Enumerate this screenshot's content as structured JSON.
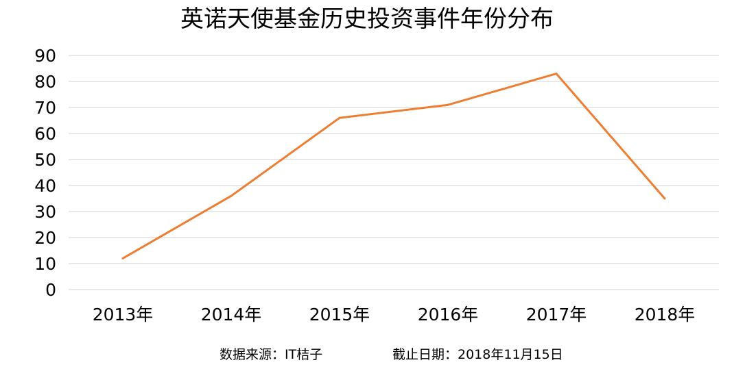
{
  "chart_data": {
    "type": "line",
    "title": "英诺天使基金历史投资事件年份分布",
    "categories": [
      "2013年",
      "2014年",
      "2015年",
      "2016年",
      "2017年",
      "2018年"
    ],
    "series": [
      {
        "values": [
          12,
          36,
          66,
          71,
          83,
          35
        ]
      }
    ],
    "ylim": [
      0,
      90
    ],
    "yticks": [
      0,
      10,
      20,
      30,
      40,
      50,
      60,
      70,
      80,
      90
    ],
    "grid": true,
    "line_color": "#ED7D31",
    "grid_color": "#D9D9D9"
  },
  "footer": {
    "source": "数据来源：IT桔子",
    "date": "截止日期：2018年11月15日"
  }
}
